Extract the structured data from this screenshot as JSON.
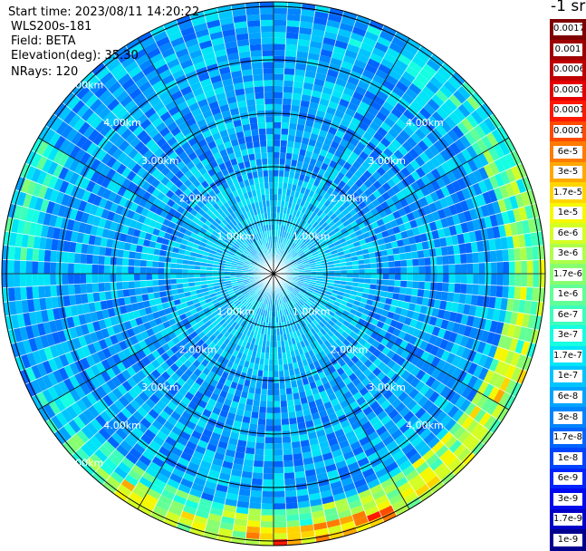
{
  "info": {
    "start_time": "Start time: 2023/08/11 14:20:22",
    "instrument": "WLS200s-181",
    "field": "Field: BETA",
    "elevation": "Elevation(deg): 35.30",
    "nrays": "NRays: 120"
  },
  "range_rings": [
    {
      "label": "1.00km",
      "radius_km": 1.0
    },
    {
      "label": "2.00km",
      "radius_km": 2.0
    },
    {
      "label": "3.00km",
      "radius_km": 3.0
    },
    {
      "label": "4.00km",
      "radius_km": 4.0
    },
    {
      "label": "5.00km",
      "radius_km": 5.0
    }
  ],
  "colorbar": {
    "unit_label": "-1 sr",
    "entries": [
      {
        "label": "0.0017",
        "color": "#7f0000"
      },
      {
        "label": "0.001",
        "color": "#9e0000"
      },
      {
        "label": "0.0006",
        "color": "#c00000"
      },
      {
        "label": "0.0003",
        "color": "#e40000"
      },
      {
        "label": "0.00017",
        "color": "#ff1800"
      },
      {
        "label": "0.0001",
        "color": "#ff4a00"
      },
      {
        "label": "6e-5",
        "color": "#ff7a00"
      },
      {
        "label": "3e-5",
        "color": "#ffa800"
      },
      {
        "label": "1.7e-5",
        "color": "#ffd500"
      },
      {
        "label": "1e-5",
        "color": "#f6f800"
      },
      {
        "label": "6e-6",
        "color": "#d4ff24"
      },
      {
        "label": "3e-6",
        "color": "#aeff4a"
      },
      {
        "label": "1.7e-6",
        "color": "#88ff70"
      },
      {
        "label": "1e-6",
        "color": "#62ff96"
      },
      {
        "label": "6e-7",
        "color": "#3cffbc"
      },
      {
        "label": "3e-7",
        "color": "#16ffe2"
      },
      {
        "label": "1.7e-7",
        "color": "#00e4f8"
      },
      {
        "label": "1e-7",
        "color": "#00c4ff"
      },
      {
        "label": "6e-8",
        "color": "#00a4ff"
      },
      {
        "label": "3e-8",
        "color": "#0084ff"
      },
      {
        "label": "1.7e-8",
        "color": "#0064ff"
      },
      {
        "label": "1e-8",
        "color": "#0044ff"
      },
      {
        "label": "6e-9",
        "color": "#0024ff"
      },
      {
        "label": "3e-9",
        "color": "#0008f0"
      },
      {
        "label": "1.7e-9",
        "color": "#0000c8"
      },
      {
        "label": "1e-9",
        "color": "#00008f"
      }
    ]
  }
}
